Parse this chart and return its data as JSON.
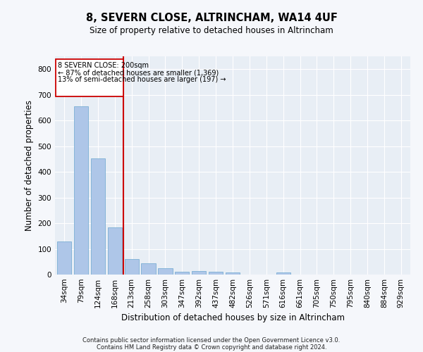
{
  "title": "8, SEVERN CLOSE, ALTRINCHAM, WA14 4UF",
  "subtitle": "Size of property relative to detached houses in Altrincham",
  "xlabel": "Distribution of detached houses by size in Altrincham",
  "ylabel": "Number of detached properties",
  "categories": [
    "34sqm",
    "79sqm",
    "124sqm",
    "168sqm",
    "213sqm",
    "258sqm",
    "303sqm",
    "347sqm",
    "392sqm",
    "437sqm",
    "482sqm",
    "526sqm",
    "571sqm",
    "616sqm",
    "661sqm",
    "705sqm",
    "750sqm",
    "795sqm",
    "840sqm",
    "884sqm",
    "929sqm"
  ],
  "values": [
    128,
    656,
    452,
    185,
    60,
    43,
    25,
    12,
    13,
    12,
    9,
    0,
    0,
    8,
    0,
    0,
    0,
    0,
    0,
    0,
    0
  ],
  "bar_color": "#aec6e8",
  "bar_edge_color": "#7aafd4",
  "vline_color": "#cc0000",
  "annotation_line1": "8 SEVERN CLOSE: 200sqm",
  "annotation_line2": "← 87% of detached houses are smaller (1,369)",
  "annotation_line3": "13% of semi-detached houses are larger (197) →",
  "annotation_box_color": "#ffffff",
  "annotation_box_edge": "#cc0000",
  "ylim": [
    0,
    850
  ],
  "yticks": [
    0,
    100,
    200,
    300,
    400,
    500,
    600,
    700,
    800
  ],
  "footnote_line1": "Contains HM Land Registry data © Crown copyright and database right 2024.",
  "footnote_line2": "Contains public sector information licensed under the Open Government Licence v3.0.",
  "bg_color": "#e8eef5",
  "grid_color": "#ffffff",
  "fig_bg_color": "#f5f7fb"
}
